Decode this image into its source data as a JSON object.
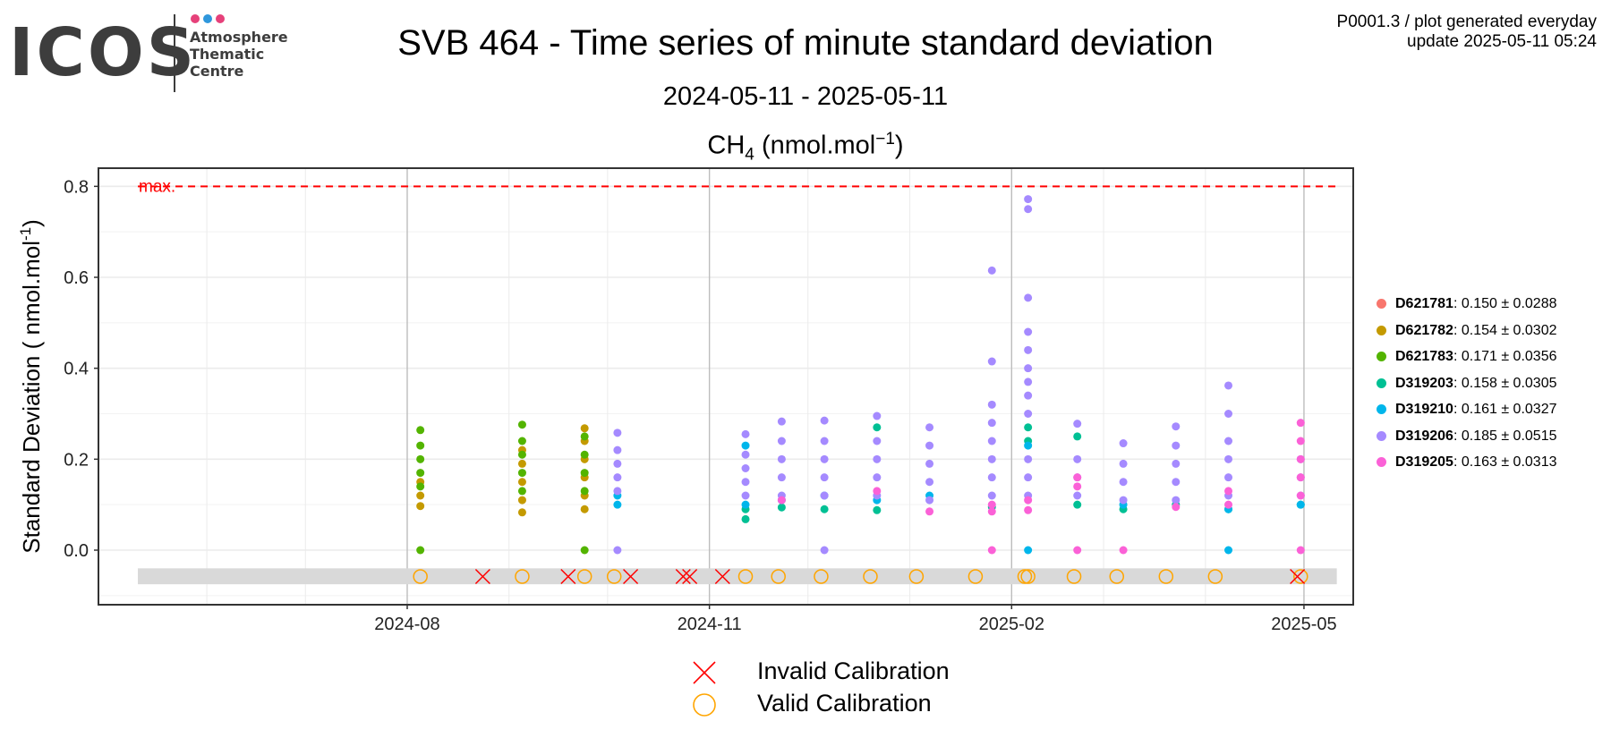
{
  "logo": {
    "wordmark": "ICOS",
    "subtitle_lines": [
      "Atmosphere",
      "Thematic",
      "Centre"
    ],
    "dot_colors": [
      "#e6417a",
      "#2f97dc",
      "#e6417a"
    ]
  },
  "header": {
    "title": "SVB 464 - Time series of minute standard deviation",
    "subtitle": "2024-05-11 - 2025-05-11",
    "species": "CH",
    "species_sub": "4",
    "species_unit": "(nmol.mol",
    "species_unit_sup": "−1",
    "species_unit_close": ")",
    "corner_line1": "P0001.3 / plot generated everyday",
    "corner_line2": "update  2025-05-11 05:24"
  },
  "chart_data": {
    "type": "scatter",
    "title": "",
    "ylabel": "Standard Deviation ( nmol.mol",
    "ylabel_sup": "-1",
    "ylabel_close": ")",
    "xlabel": "",
    "ylim": [
      -0.12,
      0.84
    ],
    "xlim": [
      "2024-05-11",
      "2025-05-11"
    ],
    "x_tick_labels": [
      "2024-08",
      "2024-11",
      "2025-02",
      "2025-05"
    ],
    "x_ticks": [
      "2024-08-01",
      "2024-11-01",
      "2025-02-01",
      "2025-05-01"
    ],
    "x_minor_ticks": [
      "2024-06-01",
      "2024-07-01",
      "2024-09-01",
      "2024-10-01",
      "2024-12-01",
      "2025-01-01",
      "2025-03-01",
      "2025-04-01"
    ],
    "y_ticks": [
      0.0,
      0.2,
      0.4,
      0.6,
      0.8
    ],
    "y_tick_labels": [
      "0.0",
      "0.2",
      "0.4",
      "0.6",
      "0.8"
    ],
    "grid": true,
    "max_line": {
      "label": "max.",
      "value": 0.8,
      "color": "#ff0000"
    },
    "calibration_band": {
      "ymin": -0.075,
      "ymax": -0.04,
      "marker_y": -0.058
    },
    "series": [
      {
        "name": "D621781",
        "stat": "0.150 ± 0.0288",
        "color": "#F8766D",
        "points": []
      },
      {
        "name": "D621782",
        "stat": "0.154 ± 0.0302",
        "color": "#C49A00",
        "points": [
          [
            "2024-08-05",
            0.097
          ],
          [
            "2024-08-05",
            0.12
          ],
          [
            "2024-08-05",
            0.15
          ],
          [
            "2024-09-05",
            0.083
          ],
          [
            "2024-09-05",
            0.11
          ],
          [
            "2024-09-05",
            0.15
          ],
          [
            "2024-09-05",
            0.19
          ],
          [
            "2024-09-05",
            0.22
          ],
          [
            "2024-09-24",
            0.09
          ],
          [
            "2024-09-24",
            0.12
          ],
          [
            "2024-09-24",
            0.16
          ],
          [
            "2024-09-24",
            0.2
          ],
          [
            "2024-09-24",
            0.24
          ],
          [
            "2024-09-24",
            0.268
          ]
        ]
      },
      {
        "name": "D621783",
        "stat": "0.171 ± 0.0356",
        "color": "#53B400",
        "points": [
          [
            "2024-08-05",
            0.0
          ],
          [
            "2024-08-05",
            0.14
          ],
          [
            "2024-08-05",
            0.17
          ],
          [
            "2024-08-05",
            0.2
          ],
          [
            "2024-08-05",
            0.23
          ],
          [
            "2024-08-05",
            0.264
          ],
          [
            "2024-09-05",
            0.13
          ],
          [
            "2024-09-05",
            0.17
          ],
          [
            "2024-09-05",
            0.21
          ],
          [
            "2024-09-05",
            0.24
          ],
          [
            "2024-09-05",
            0.276
          ],
          [
            "2024-09-24",
            0.0
          ],
          [
            "2024-09-24",
            0.13
          ],
          [
            "2024-09-24",
            0.17
          ],
          [
            "2024-09-24",
            0.21
          ],
          [
            "2024-09-24",
            0.25
          ]
        ]
      },
      {
        "name": "D319203",
        "stat": "0.158 ± 0.0305",
        "color": "#00C094",
        "points": [
          [
            "2024-11-12",
            0.068
          ],
          [
            "2024-11-12",
            0.09
          ],
          [
            "2024-11-23",
            0.094
          ],
          [
            "2024-12-06",
            0.09
          ],
          [
            "2024-12-22",
            0.088
          ],
          [
            "2024-12-22",
            0.27
          ],
          [
            "2025-01-26",
            0.095
          ],
          [
            "2025-02-06",
            0.27
          ],
          [
            "2025-02-06",
            0.24
          ],
          [
            "2025-02-21",
            0.1
          ],
          [
            "2025-02-21",
            0.25
          ],
          [
            "2025-03-07",
            0.09
          ],
          [
            "2025-03-23",
            0.1
          ],
          [
            "2025-04-08",
            0.09
          ],
          [
            "2025-04-30",
            0.1
          ]
        ]
      },
      {
        "name": "D319210",
        "stat": "0.161 ± 0.0327",
        "color": "#00B6EB",
        "points": [
          [
            "2024-10-04",
            0.1
          ],
          [
            "2024-10-04",
            0.12
          ],
          [
            "2024-11-12",
            0.1
          ],
          [
            "2024-11-12",
            0.23
          ],
          [
            "2024-11-23",
            0.11
          ],
          [
            "2024-12-06",
            0.12
          ],
          [
            "2024-12-22",
            0.11
          ],
          [
            "2025-01-07",
            0.12
          ],
          [
            "2025-02-06",
            0.0
          ],
          [
            "2025-02-06",
            0.23
          ],
          [
            "2025-03-07",
            0.1
          ],
          [
            "2025-04-08",
            0.0
          ],
          [
            "2025-04-08",
            0.09
          ],
          [
            "2025-04-30",
            0.1
          ]
        ]
      },
      {
        "name": "D319206",
        "stat": "0.185 ± 0.0515",
        "color": "#A58AFF",
        "points": [
          [
            "2024-10-04",
            0.0
          ],
          [
            "2024-10-04",
            0.13
          ],
          [
            "2024-10-04",
            0.16
          ],
          [
            "2024-10-04",
            0.19
          ],
          [
            "2024-10-04",
            0.22
          ],
          [
            "2024-10-04",
            0.258
          ],
          [
            "2024-11-12",
            0.12
          ],
          [
            "2024-11-12",
            0.15
          ],
          [
            "2024-11-12",
            0.18
          ],
          [
            "2024-11-12",
            0.21
          ],
          [
            "2024-11-12",
            0.255
          ],
          [
            "2024-11-23",
            0.12
          ],
          [
            "2024-11-23",
            0.16
          ],
          [
            "2024-11-23",
            0.2
          ],
          [
            "2024-11-23",
            0.24
          ],
          [
            "2024-11-23",
            0.283
          ],
          [
            "2024-12-06",
            0.0
          ],
          [
            "2024-12-06",
            0.12
          ],
          [
            "2024-12-06",
            0.16
          ],
          [
            "2024-12-06",
            0.2
          ],
          [
            "2024-12-06",
            0.24
          ],
          [
            "2024-12-06",
            0.285
          ],
          [
            "2024-12-22",
            0.12
          ],
          [
            "2024-12-22",
            0.16
          ],
          [
            "2024-12-22",
            0.2
          ],
          [
            "2024-12-22",
            0.24
          ],
          [
            "2024-12-22",
            0.295
          ],
          [
            "2025-01-07",
            0.11
          ],
          [
            "2025-01-07",
            0.15
          ],
          [
            "2025-01-07",
            0.19
          ],
          [
            "2025-01-07",
            0.23
          ],
          [
            "2025-01-07",
            0.27
          ],
          [
            "2025-01-26",
            0.12
          ],
          [
            "2025-01-26",
            0.16
          ],
          [
            "2025-01-26",
            0.2
          ],
          [
            "2025-01-26",
            0.24
          ],
          [
            "2025-01-26",
            0.28
          ],
          [
            "2025-01-26",
            0.32
          ],
          [
            "2025-01-26",
            0.415
          ],
          [
            "2025-01-26",
            0.615
          ],
          [
            "2025-02-06",
            0.12
          ],
          [
            "2025-02-06",
            0.16
          ],
          [
            "2025-02-06",
            0.2
          ],
          [
            "2025-02-06",
            0.3
          ],
          [
            "2025-02-06",
            0.34
          ],
          [
            "2025-02-06",
            0.37
          ],
          [
            "2025-02-06",
            0.4
          ],
          [
            "2025-02-06",
            0.44
          ],
          [
            "2025-02-06",
            0.48
          ],
          [
            "2025-02-06",
            0.555
          ],
          [
            "2025-02-06",
            0.75
          ],
          [
            "2025-02-06",
            0.772
          ],
          [
            "2025-02-21",
            0.12
          ],
          [
            "2025-02-21",
            0.16
          ],
          [
            "2025-02-21",
            0.2
          ],
          [
            "2025-02-21",
            0.278
          ],
          [
            "2025-03-07",
            0.11
          ],
          [
            "2025-03-07",
            0.15
          ],
          [
            "2025-03-07",
            0.19
          ],
          [
            "2025-03-07",
            0.235
          ],
          [
            "2025-03-23",
            0.11
          ],
          [
            "2025-03-23",
            0.15
          ],
          [
            "2025-03-23",
            0.19
          ],
          [
            "2025-03-23",
            0.23
          ],
          [
            "2025-03-23",
            0.272
          ],
          [
            "2025-04-08",
            0.12
          ],
          [
            "2025-04-08",
            0.16
          ],
          [
            "2025-04-08",
            0.2
          ],
          [
            "2025-04-08",
            0.24
          ],
          [
            "2025-04-08",
            0.3
          ],
          [
            "2025-04-08",
            0.362
          ],
          [
            "2025-04-30",
            0.12
          ],
          [
            "2025-04-30",
            0.16
          ],
          [
            "2025-04-30",
            0.2
          ]
        ]
      },
      {
        "name": "D319205",
        "stat": "0.163 ± 0.0313",
        "color": "#FB61D7",
        "points": [
          [
            "2024-11-23",
            0.11
          ],
          [
            "2024-12-22",
            0.13
          ],
          [
            "2025-01-07",
            0.085
          ],
          [
            "2025-01-26",
            0.0
          ],
          [
            "2025-01-26",
            0.085
          ],
          [
            "2025-01-26",
            0.1
          ],
          [
            "2025-02-06",
            0.088
          ],
          [
            "2025-02-06",
            0.11
          ],
          [
            "2025-02-21",
            0.0
          ],
          [
            "2025-02-21",
            0.14
          ],
          [
            "2025-02-21",
            0.16
          ],
          [
            "2025-03-07",
            0.0
          ],
          [
            "2025-03-23",
            0.095
          ],
          [
            "2025-04-08",
            0.1
          ],
          [
            "2025-04-08",
            0.13
          ],
          [
            "2025-04-30",
            0.0
          ],
          [
            "2025-04-30",
            0.12
          ],
          [
            "2025-04-30",
            0.16
          ],
          [
            "2025-04-30",
            0.2
          ],
          [
            "2025-04-30",
            0.24
          ],
          [
            "2025-04-30",
            0.28
          ]
        ]
      }
    ],
    "calibrations": {
      "invalid": [
        "2024-08-24",
        "2024-09-19",
        "2024-10-08",
        "2024-10-24",
        "2024-10-26",
        "2024-11-05",
        "2025-04-29"
      ],
      "valid": [
        "2024-08-05",
        "2024-09-05",
        "2024-09-24",
        "2024-10-03",
        "2024-11-12",
        "2024-11-22",
        "2024-12-05",
        "2024-12-20",
        "2025-01-03",
        "2025-01-21",
        "2025-02-05",
        "2025-02-06",
        "2025-02-20",
        "2025-03-05",
        "2025-03-20",
        "2025-04-04",
        "2025-04-30"
      ]
    },
    "calibration_legend": {
      "invalid_label": "Invalid Calibration",
      "invalid_color": "#ff0000",
      "valid_label": "Valid Calibration",
      "valid_color": "#FFA500"
    }
  }
}
